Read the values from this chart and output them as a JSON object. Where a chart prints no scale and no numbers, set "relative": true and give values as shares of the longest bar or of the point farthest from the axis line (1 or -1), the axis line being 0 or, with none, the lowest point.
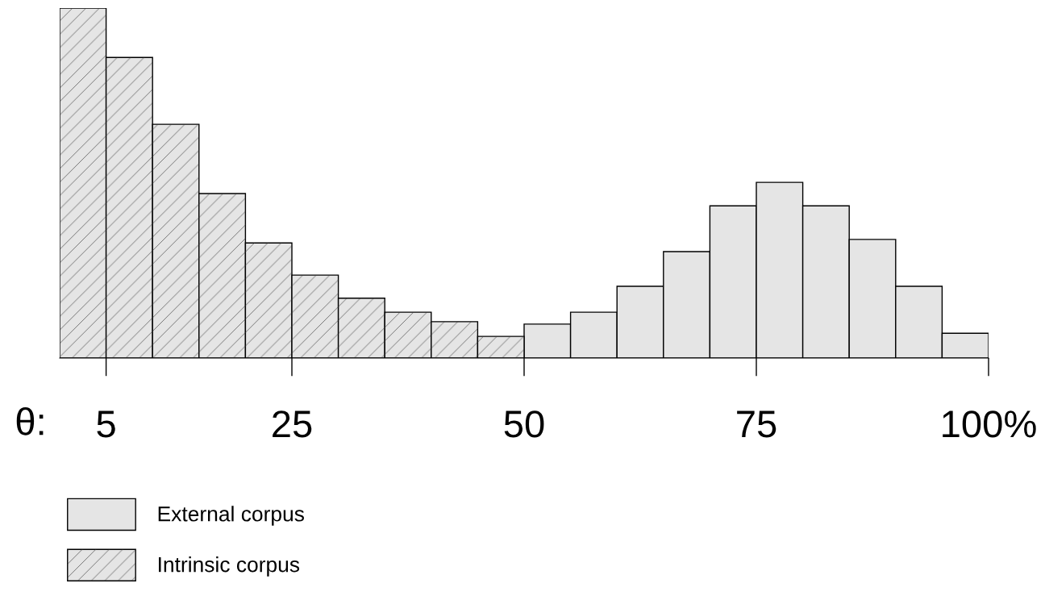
{
  "chart_data": {
    "type": "bar",
    "relative": true,
    "series": [
      {
        "name": "External corpus",
        "color": "#e5e5e5",
        "x": [
          52.5,
          57.5,
          62.5,
          67.5,
          72.5,
          77.5,
          82.5,
          87.5,
          92.5,
          97.5
        ],
        "values": [
          0.097,
          0.131,
          0.205,
          0.304,
          0.435,
          0.502,
          0.435,
          0.339,
          0.205,
          0.071
        ]
      },
      {
        "name": "Intrinsic corpus",
        "color": "#e5e5e5",
        "x": [
          2.5,
          7.5,
          12.5,
          17.5,
          22.5,
          27.5,
          32.5,
          37.5,
          42.5,
          47.5
        ],
        "values": [
          1,
          0.859,
          0.668,
          0.47,
          0.329,
          0.237,
          0.171,
          0.131,
          0.104,
          0.062
        ]
      }
    ],
    "xlim": [
      0,
      100
    ],
    "xticks": [
      5,
      25,
      50,
      75,
      {
        "value": 100,
        "label": "100%"
      }
    ],
    "annotations": [
      "θ:"
    ],
    "legend": "bottom left",
    "grid": false
  }
}
